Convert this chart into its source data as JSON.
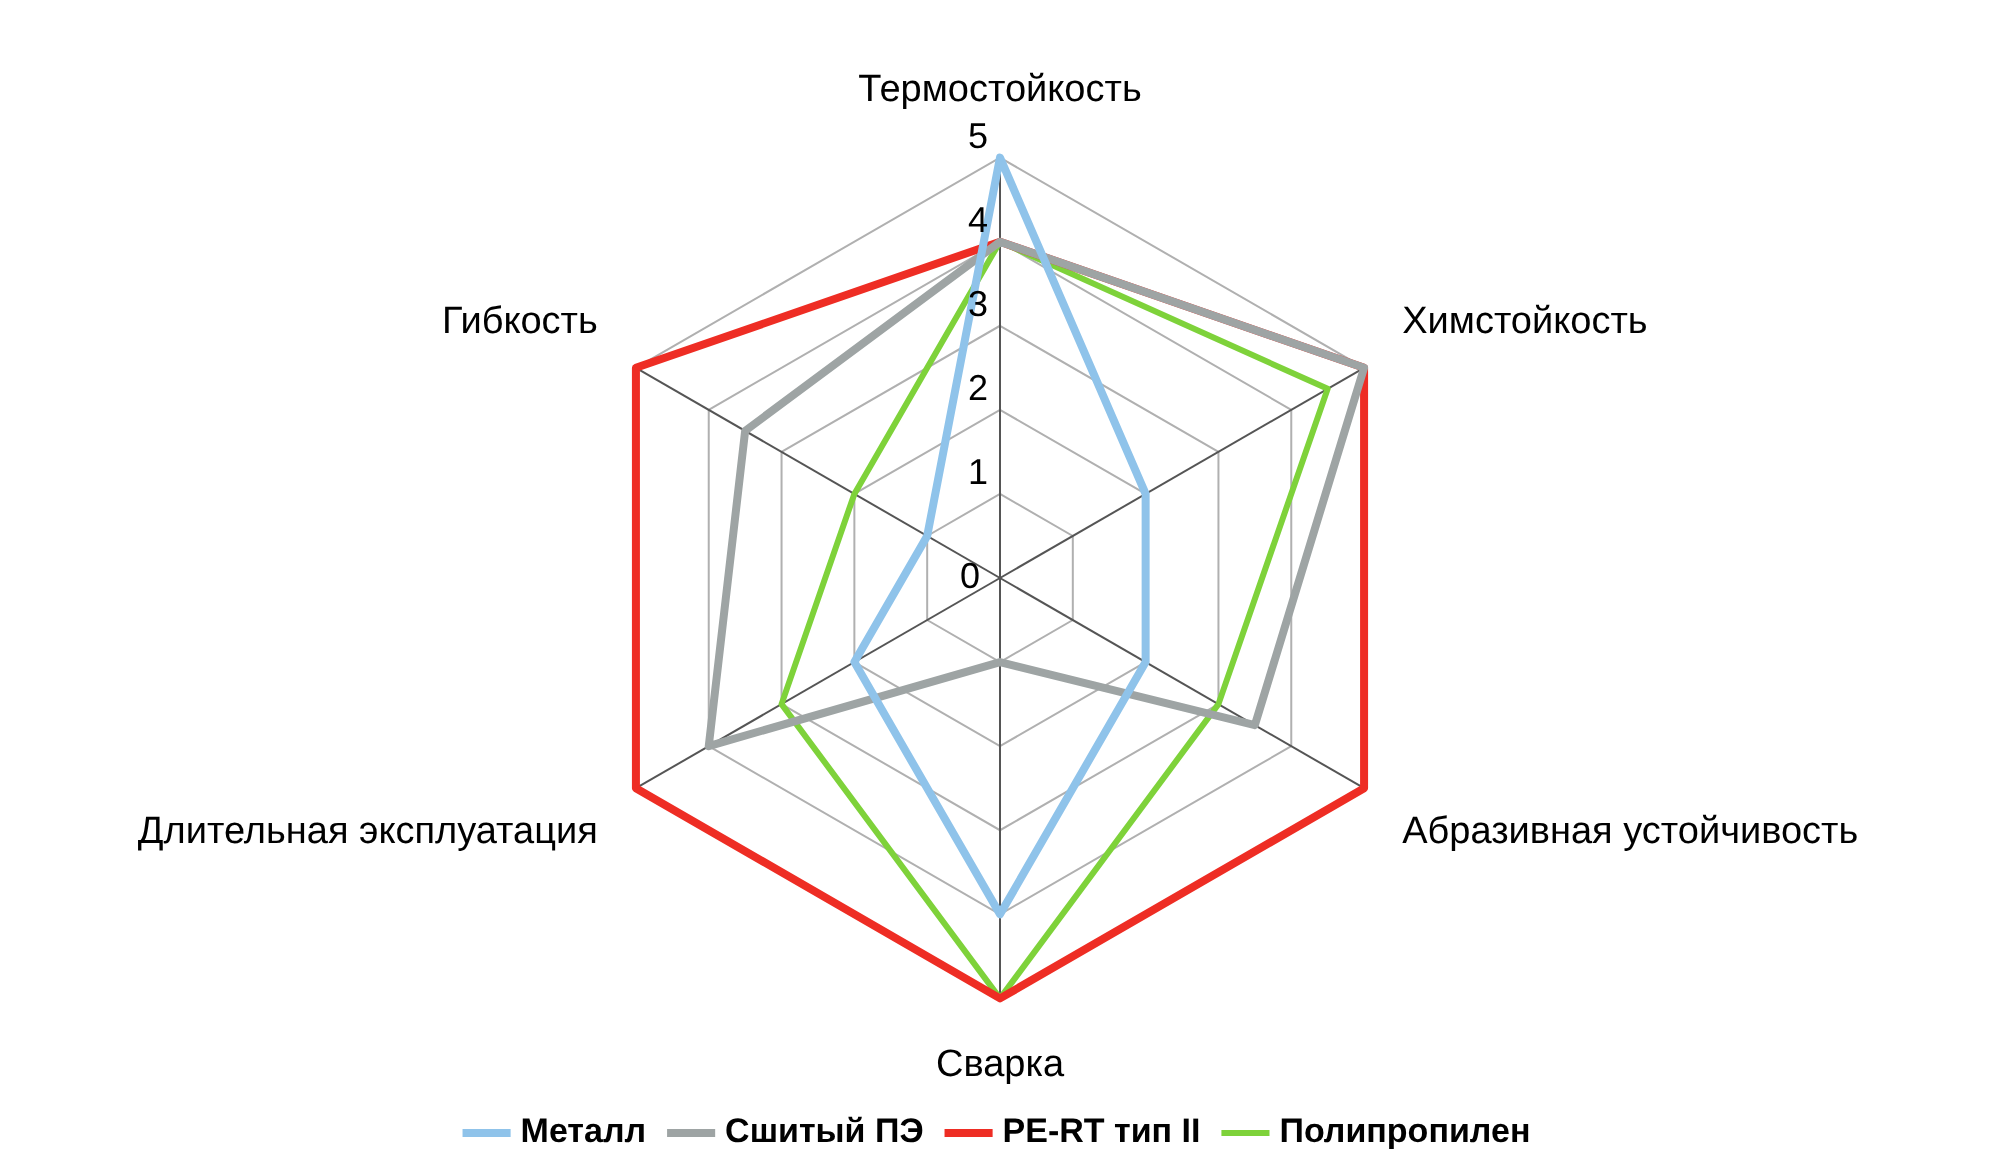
{
  "chart_data": {
    "type": "radar",
    "categories": [
      "Термостойкость",
      "Химстойкость",
      "Абразивная устойчивость",
      "Сварка",
      "Длительная эксплуатация",
      "Гибкость"
    ],
    "ylim": [
      0,
      5
    ],
    "yticks": [
      0,
      1,
      2,
      3,
      4,
      5
    ],
    "grid": true,
    "legend": "bottom",
    "marker": "none",
    "series": [
      {
        "name": "Металл",
        "color": "#8fc3ea",
        "values": [
          5,
          2,
          2,
          4,
          2,
          1
        ]
      },
      {
        "name": "Сшитый ПЭ",
        "color": "#9ea4a4",
        "values": [
          4,
          5,
          3.5,
          1,
          4,
          3.5
        ]
      },
      {
        "name": "PE-RT тип II",
        "color": "#ee2d24",
        "values": [
          4,
          5,
          5,
          5,
          5,
          5
        ]
      },
      {
        "name": "Полипропилен",
        "color": "#7ed23a",
        "values": [
          4,
          4.5,
          3,
          5,
          3,
          2
        ]
      }
    ]
  }
}
